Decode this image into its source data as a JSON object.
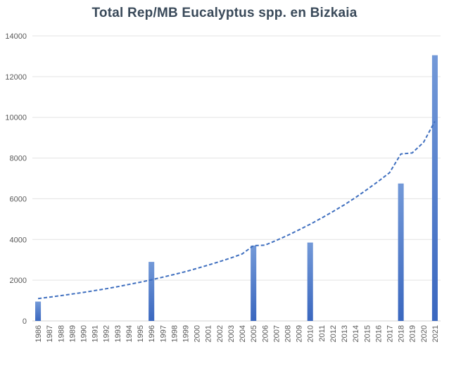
{
  "chart_data": {
    "type": "bar",
    "title": "Total Rep/MB Eucalyptus spp. en Bizkaia",
    "xlabel": "",
    "ylabel": "",
    "ylim": [
      0,
      14000
    ],
    "yticks": [
      0,
      2000,
      4000,
      6000,
      8000,
      10000,
      12000,
      14000
    ],
    "grid": true,
    "categories": [
      "1986",
      "1987",
      "1988",
      "1989",
      "1990",
      "1991",
      "1992",
      "1993",
      "1994",
      "1995",
      "1996",
      "1997",
      "1998",
      "1999",
      "2000",
      "2001",
      "2002",
      "2003",
      "2004",
      "2005",
      "2006",
      "2007",
      "2008",
      "2009",
      "2010",
      "2011",
      "2012",
      "2013",
      "2014",
      "2015",
      "2016",
      "2017",
      "2018",
      "2019",
      "2020",
      "2021"
    ],
    "values": [
      950,
      0,
      0,
      0,
      0,
      0,
      0,
      0,
      0,
      0,
      2900,
      0,
      0,
      0,
      0,
      0,
      0,
      0,
      0,
      3700,
      0,
      0,
      0,
      0,
      3850,
      0,
      0,
      0,
      0,
      0,
      0,
      0,
      6750,
      0,
      0,
      13050
    ],
    "trendline": {
      "type": "exponential",
      "values": [
        1100,
        1170,
        1240,
        1320,
        1400,
        1490,
        1580,
        1680,
        1790,
        1900,
        2020,
        2150,
        2280,
        2420,
        2580,
        2740,
        2910,
        3090,
        3290,
        3700,
        3720,
        3950,
        4200,
        4470,
        4750,
        5050,
        5370,
        5700,
        6060,
        6450,
        6850,
        7280,
        8200,
        8250,
        8770,
        9800
      ]
    },
    "colors": {
      "bar": "#4472c4",
      "bar_light": "#6f93d6",
      "trend": "#3f6fbf"
    }
  }
}
